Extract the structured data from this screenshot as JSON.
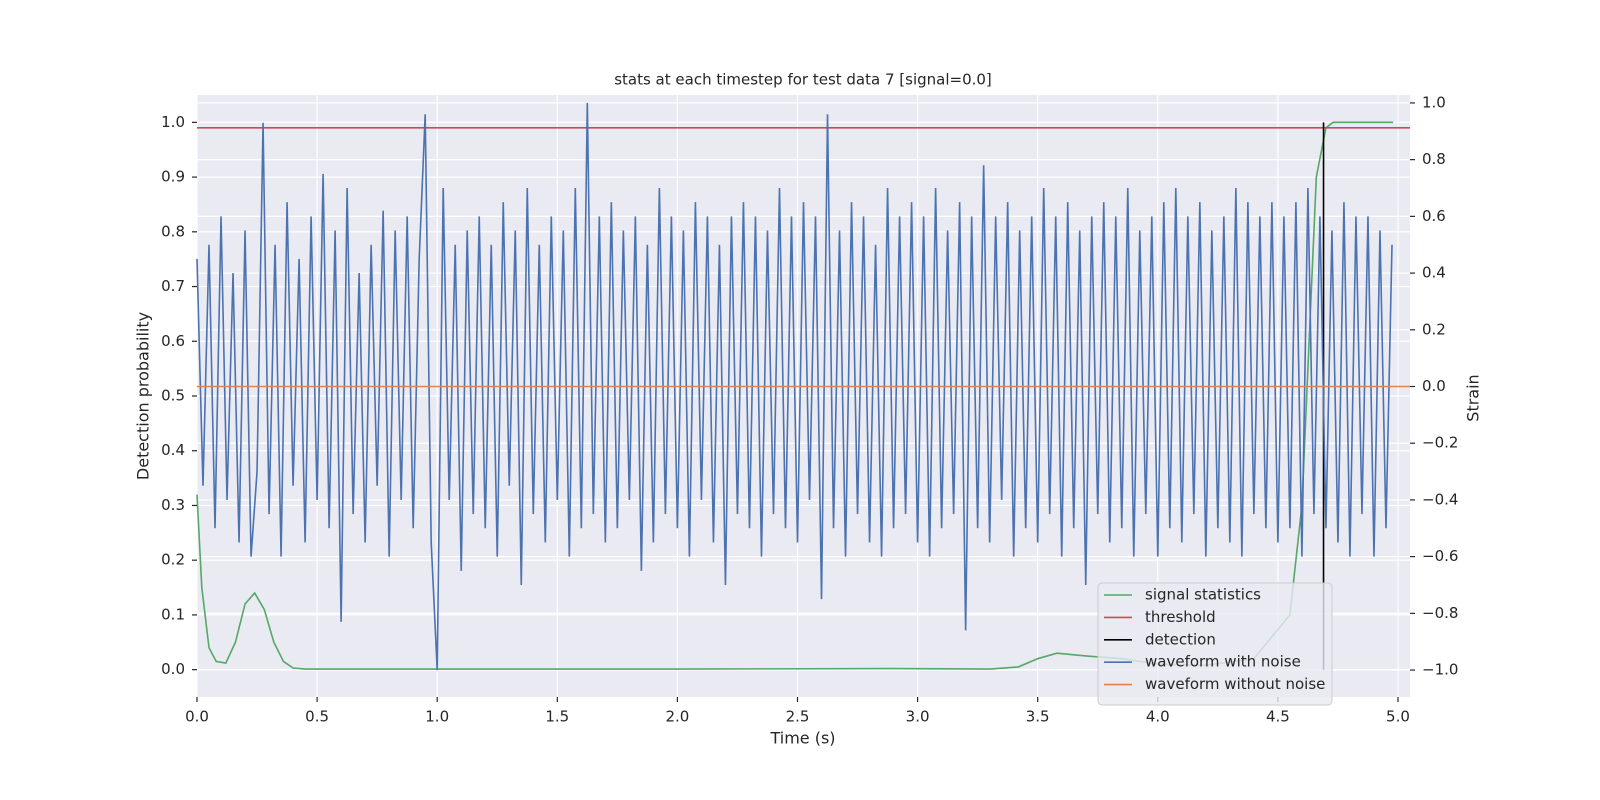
{
  "chart_data": {
    "type": "line",
    "title": "stats at each timestep for test data 7 [signal=0.0]",
    "xlabel": "Time (s)",
    "ylabel": "Detection probability",
    "y2label": "Strain",
    "xlim": [
      0,
      5.05
    ],
    "ylim": [
      -0.05,
      1.05
    ],
    "y2lim": [
      -1.095,
      1.028
    ],
    "xticks": [
      {
        "value": 0,
        "label": "0.0"
      },
      {
        "value": 0.5,
        "label": "0.5"
      },
      {
        "value": 1,
        "label": "1.0"
      },
      {
        "value": 1.5,
        "label": "1.5"
      },
      {
        "value": 2,
        "label": "2.0"
      },
      {
        "value": 2.5,
        "label": "2.5"
      },
      {
        "value": 3,
        "label": "3.0"
      },
      {
        "value": 3.5,
        "label": "3.5"
      },
      {
        "value": 4,
        "label": "4.0"
      },
      {
        "value": 4.5,
        "label": "4.5"
      },
      {
        "value": 5,
        "label": "5.0"
      }
    ],
    "yticks": [
      {
        "value": 0,
        "label": "0.0"
      },
      0.1,
      0.2,
      0.3,
      0.4,
      0.5,
      0.6,
      0.7,
      0.8,
      0.9,
      {
        "value": 1,
        "label": "1.0"
      }
    ],
    "y2ticks": [
      {
        "value": -1,
        "label": "−1.0"
      },
      {
        "value": -0.8,
        "label": "−0.8"
      },
      {
        "value": -0.6,
        "label": "−0.6"
      },
      {
        "value": -0.4,
        "label": "−0.4"
      },
      {
        "value": -0.2,
        "label": "−0.2"
      },
      {
        "value": 0,
        "label": "0.0"
      },
      0.2,
      0.4,
      0.6,
      0.8,
      {
        "value": 1,
        "label": "1.0"
      }
    ],
    "grid": true,
    "legend": "lower right",
    "series": [
      {
        "name": "signal statistics",
        "color": "#55a868",
        "x": [
          0,
          0.02,
          0.05,
          0.08,
          0.12,
          0.16,
          0.2,
          0.24,
          0.28,
          0.32,
          0.36,
          0.4,
          0.45,
          0.6,
          1.0,
          2.0,
          2.9,
          3.3,
          3.42,
          3.5,
          3.58,
          3.7,
          3.85,
          4.0,
          4.2,
          4.4,
          4.55,
          4.6,
          4.63,
          4.66,
          4.7,
          4.73,
          4.8,
          4.98
        ],
        "values": [
          0.32,
          0.15,
          0.04,
          0.015,
          0.012,
          0.05,
          0.12,
          0.14,
          0.11,
          0.05,
          0.015,
          0.003,
          0.001,
          0.001,
          0.001,
          0.001,
          0.002,
          0.001,
          0.005,
          0.02,
          0.03,
          0.025,
          0.02,
          0.01,
          0.008,
          0.02,
          0.1,
          0.3,
          0.6,
          0.9,
          0.99,
          1.0,
          1.0,
          1.0
        ]
      },
      {
        "name": "threshold",
        "color": "#c44e52",
        "x": [
          0,
          5.05
        ],
        "values": [
          0.99,
          0.99
        ]
      },
      {
        "name": "detection",
        "color": "#000000",
        "x": [
          4.69,
          4.69
        ],
        "values": [
          0,
          1.0
        ]
      },
      {
        "name": "waveform with noise",
        "color": "#4c72b0",
        "axis": "y2",
        "x": [
          0,
          0.025,
          0.05,
          0.075,
          0.1,
          0.125,
          0.15,
          0.175,
          0.2,
          0.225,
          0.25,
          0.275,
          0.3,
          0.325,
          0.35,
          0.375,
          0.4,
          0.425,
          0.45,
          0.475,
          0.5,
          0.525,
          0.55,
          0.575,
          0.6,
          0.625,
          0.65,
          0.675,
          0.7,
          0.725,
          0.75,
          0.775,
          0.8,
          0.825,
          0.85,
          0.875,
          0.9,
          0.925,
          0.95,
          0.975,
          1.0,
          1.025,
          1.05,
          1.075,
          1.1,
          1.125,
          1.15,
          1.175,
          1.2,
          1.225,
          1.25,
          1.275,
          1.3,
          1.325,
          1.35,
          1.375,
          1.4,
          1.425,
          1.45,
          1.475,
          1.5,
          1.525,
          1.55,
          1.575,
          1.6,
          1.625,
          1.65,
          1.675,
          1.7,
          1.725,
          1.75,
          1.775,
          1.8,
          1.825,
          1.85,
          1.875,
          1.9,
          1.925,
          1.95,
          1.975,
          2.0,
          2.025,
          2.05,
          2.075,
          2.1,
          2.125,
          2.15,
          2.175,
          2.2,
          2.225,
          2.25,
          2.275,
          2.3,
          2.325,
          2.35,
          2.375,
          2.4,
          2.425,
          2.45,
          2.475,
          2.5,
          2.525,
          2.55,
          2.575,
          2.6,
          2.625,
          2.65,
          2.675,
          2.7,
          2.725,
          2.75,
          2.775,
          2.8,
          2.825,
          2.85,
          2.875,
          2.9,
          2.925,
          2.95,
          2.975,
          3.0,
          3.025,
          3.05,
          3.075,
          3.1,
          3.125,
          3.15,
          3.175,
          3.2,
          3.225,
          3.25,
          3.275,
          3.3,
          3.325,
          3.35,
          3.375,
          3.4,
          3.425,
          3.45,
          3.475,
          3.5,
          3.525,
          3.55,
          3.575,
          3.6,
          3.625,
          3.65,
          3.675,
          3.7,
          3.725,
          3.75,
          3.775,
          3.8,
          3.825,
          3.85,
          3.875,
          3.9,
          3.925,
          3.95,
          3.975,
          4.0,
          4.025,
          4.05,
          4.075,
          4.1,
          4.125,
          4.15,
          4.175,
          4.2,
          4.225,
          4.25,
          4.275,
          4.3,
          4.325,
          4.35,
          4.375,
          4.4,
          4.425,
          4.45,
          4.475,
          4.5,
          4.525,
          4.55,
          4.575,
          4.6,
          4.625,
          4.65,
          4.675,
          4.7,
          4.725,
          4.75,
          4.775,
          4.8,
          4.825,
          4.85,
          4.875,
          4.9,
          4.925,
          4.95,
          4.975
        ],
        "values": [
          0.45,
          -0.35,
          0.5,
          -0.5,
          0.6,
          -0.4,
          0.4,
          -0.55,
          0.55,
          -0.6,
          -0.3,
          0.93,
          -0.45,
          0.5,
          -0.6,
          0.65,
          -0.35,
          0.45,
          -0.55,
          0.6,
          -0.4,
          0.75,
          -0.5,
          0.55,
          -0.83,
          0.7,
          -0.45,
          0.4,
          -0.55,
          0.5,
          -0.35,
          0.62,
          -0.6,
          0.55,
          -0.4,
          0.6,
          -0.5,
          0.45,
          0.96,
          -0.55,
          -1.0,
          0.7,
          -0.4,
          0.5,
          -0.65,
          0.55,
          -0.45,
          0.6,
          -0.5,
          0.5,
          -0.6,
          0.65,
          -0.35,
          0.55,
          -0.7,
          0.7,
          -0.45,
          0.5,
          -0.55,
          0.6,
          -0.4,
          0.55,
          -0.6,
          0.7,
          -0.5,
          1.0,
          -0.45,
          0.6,
          -0.55,
          0.65,
          -0.5,
          0.55,
          -0.4,
          0.6,
          -0.65,
          0.5,
          -0.55,
          0.7,
          -0.45,
          0.6,
          -0.5,
          0.55,
          -0.6,
          0.65,
          -0.4,
          0.6,
          -0.55,
          0.5,
          -0.7,
          0.6,
          -0.45,
          0.65,
          -0.5,
          0.6,
          -0.6,
          0.55,
          -0.45,
          0.7,
          -0.5,
          0.6,
          -0.55,
          0.65,
          -0.4,
          0.6,
          -0.75,
          0.96,
          -0.5,
          0.55,
          -0.6,
          0.65,
          -0.45,
          0.6,
          -0.55,
          0.5,
          -0.6,
          0.7,
          -0.5,
          0.6,
          -0.45,
          0.65,
          -0.55,
          0.6,
          -0.6,
          0.7,
          -0.5,
          0.55,
          -0.45,
          0.65,
          -0.86,
          0.6,
          -0.5,
          0.78,
          -0.55,
          0.6,
          -0.4,
          0.65,
          -0.6,
          0.55,
          -0.5,
          0.6,
          -0.55,
          0.7,
          -0.45,
          0.6,
          -0.6,
          0.65,
          -0.5,
          0.55,
          -0.7,
          0.6,
          -0.45,
          0.65,
          -0.55,
          0.6,
          -0.5,
          0.7,
          -0.6,
          0.55,
          -0.45,
          0.6,
          -0.6,
          0.65,
          -0.5,
          0.7,
          -0.55,
          0.6,
          -0.45,
          0.65,
          -0.6,
          0.55,
          -0.5,
          0.6,
          -0.55,
          0.7,
          -0.6,
          0.65,
          -0.45,
          0.6,
          -0.5,
          0.65,
          -0.55,
          0.6,
          -0.5,
          0.65,
          -0.6,
          0.7,
          -0.45,
          0.6,
          -0.5,
          0.55,
          -0.55,
          0.65,
          -0.6,
          0.6,
          -0.45,
          0.6,
          -0.6,
          0.55,
          -0.5,
          0.5
        ]
      },
      {
        "name": "waveform without noise",
        "color": "#dd8452",
        "axis": "y2",
        "x": [
          0,
          5.05
        ],
        "values": [
          0,
          0
        ]
      }
    ]
  }
}
